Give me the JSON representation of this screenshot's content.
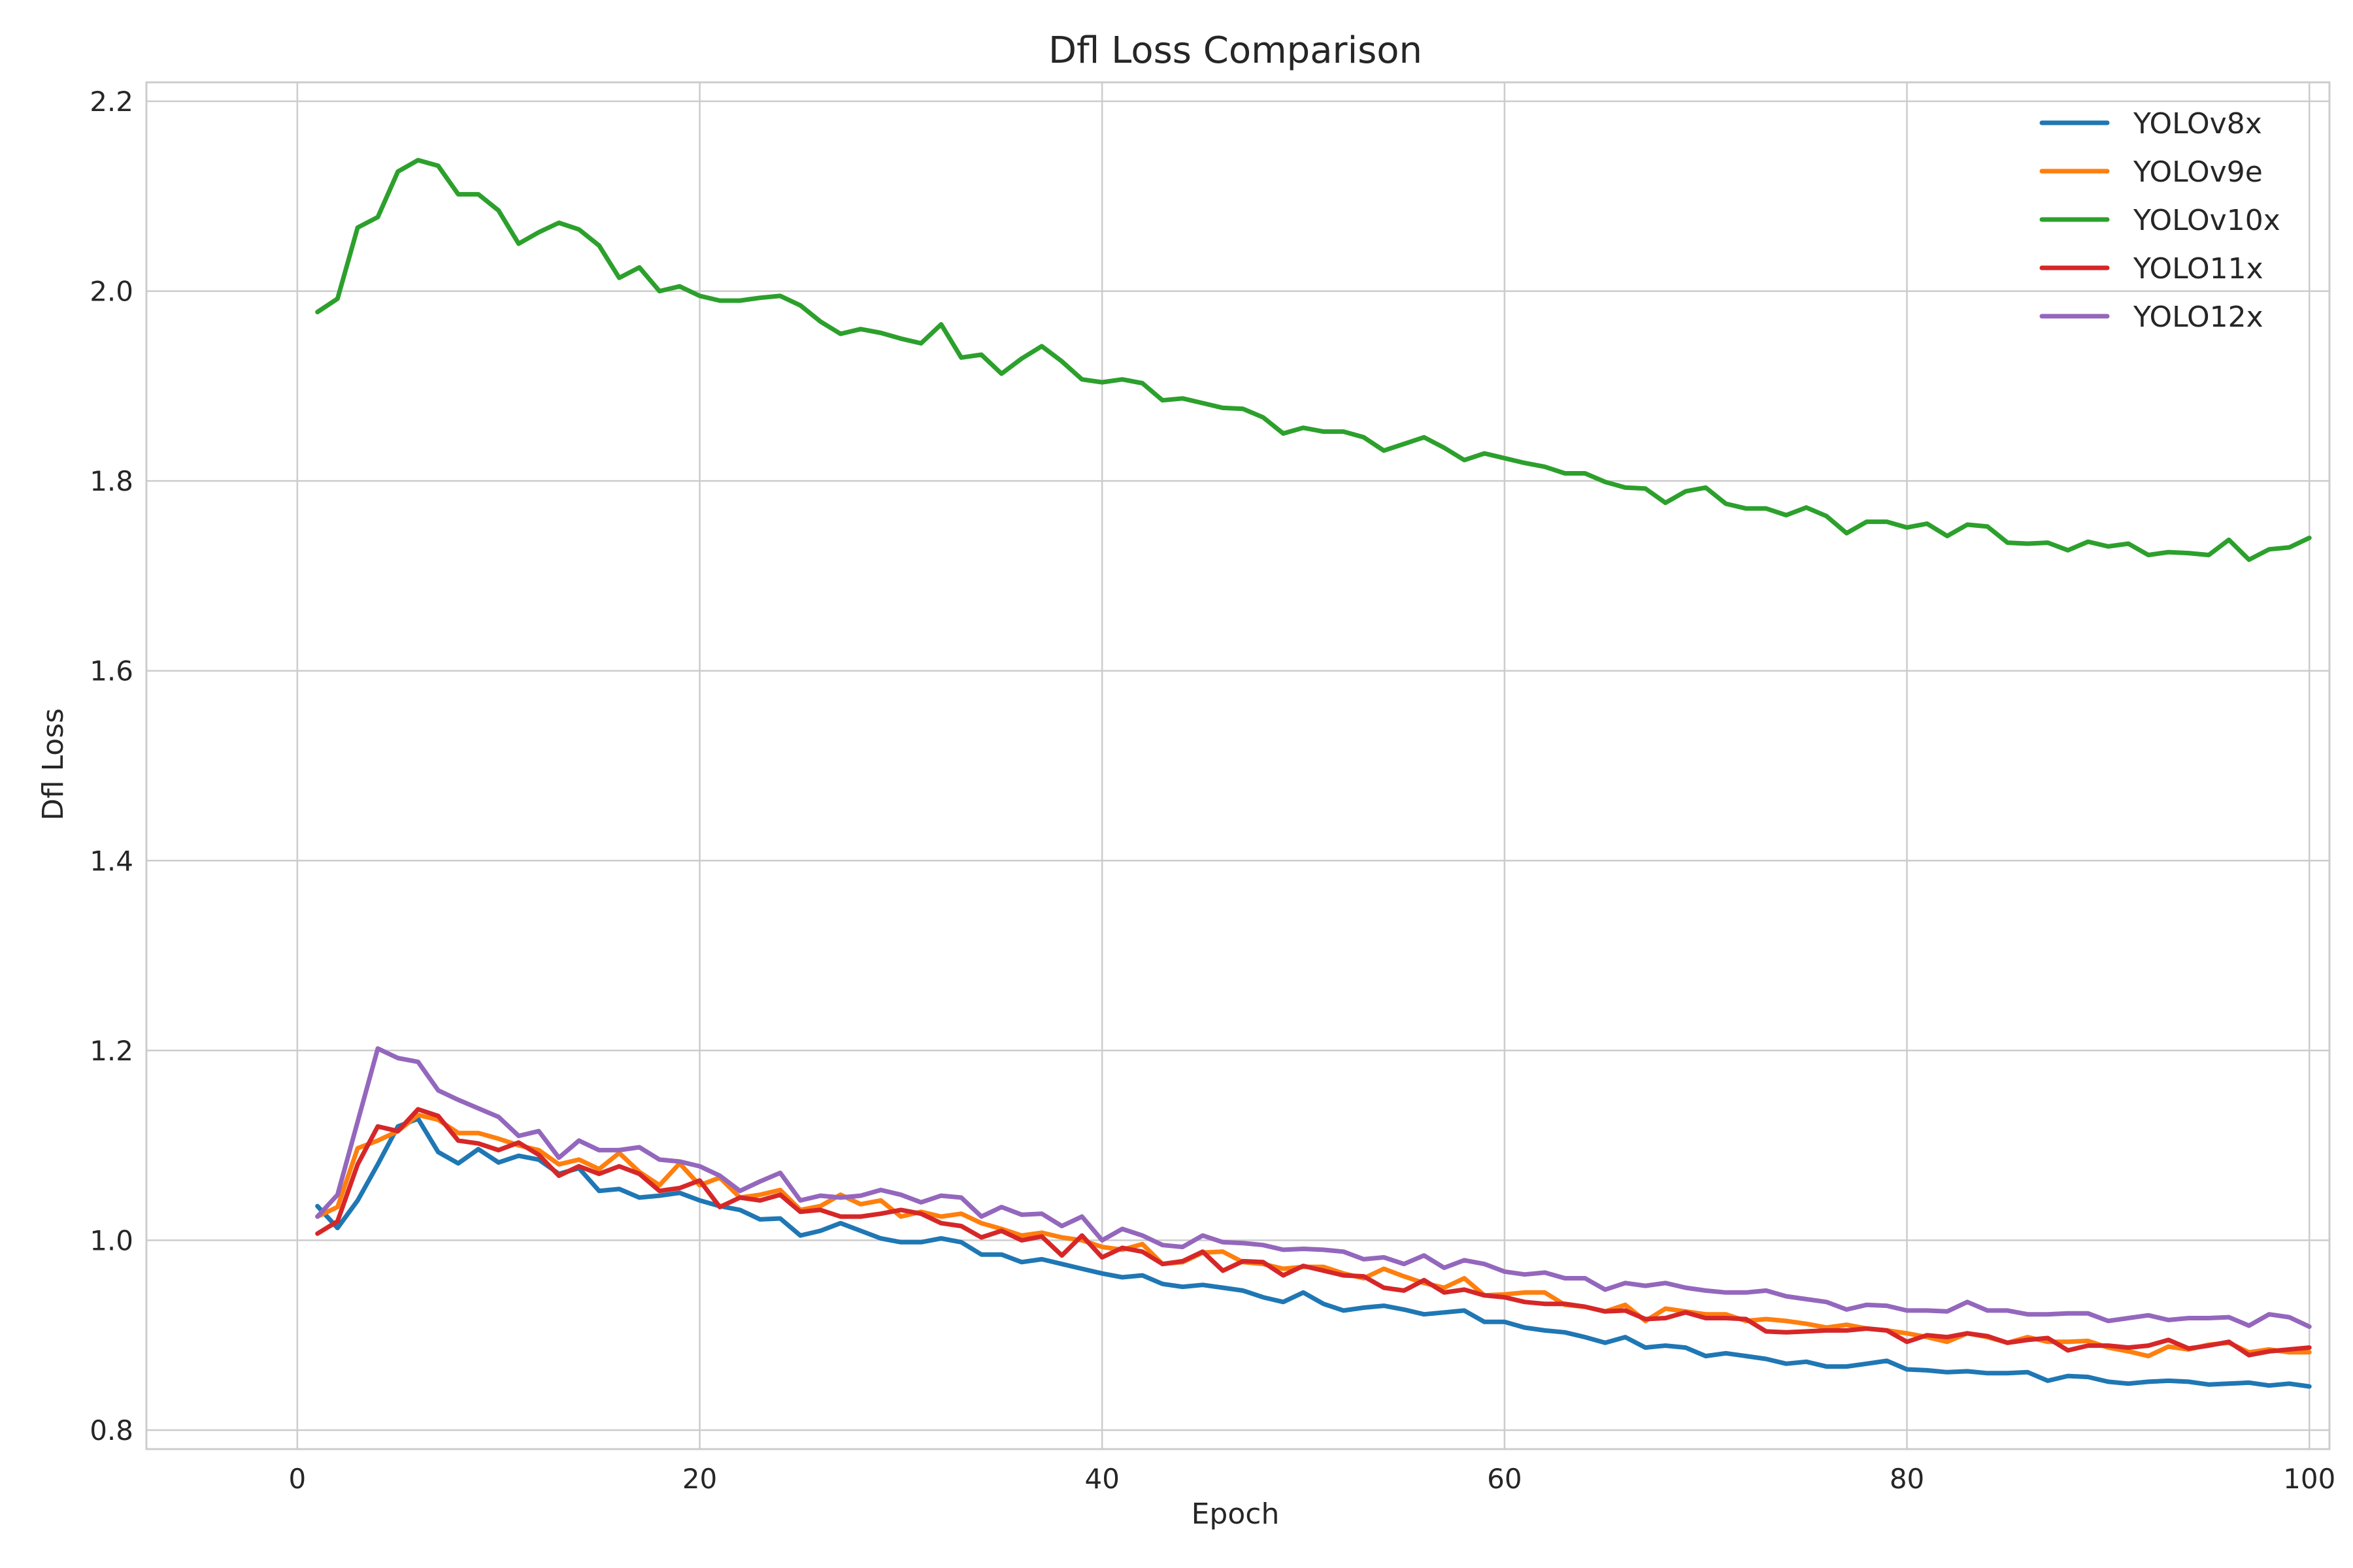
{
  "chart_data": {
    "type": "line",
    "title": "Dfl Loss Comparison",
    "xlabel": "Epoch",
    "ylabel": "Dfl Loss",
    "xlim": [
      -7.5,
      101
    ],
    "ylim": [
      0.78,
      2.22
    ],
    "xticks": [
      0,
      20,
      40,
      60,
      80,
      100
    ],
    "yticks": [
      0.8,
      1.0,
      1.2,
      1.4,
      1.6,
      1.8,
      2.0,
      2.2
    ],
    "xtick_labels": [
      "0",
      "20",
      "40",
      "60",
      "80",
      "100"
    ],
    "ytick_labels": [
      "0.8",
      "1.0",
      "1.2",
      "1.4",
      "1.6",
      "1.8",
      "2.0",
      "2.2"
    ],
    "grid": true,
    "legend_position": "top-right",
    "x_start": 1,
    "series": [
      {
        "name": "YOLOv8x",
        "color": "#1f77b4",
        "values": [
          1.036,
          1.013,
          1.042,
          1.08,
          1.12,
          1.128,
          1.093,
          1.081,
          1.096,
          1.082,
          1.089,
          1.085,
          1.07,
          1.076,
          1.052,
          1.054,
          1.045,
          1.047,
          1.05,
          1.042,
          1.036,
          1.032,
          1.022,
          1.023,
          1.005,
          1.01,
          1.018,
          1.01,
          1.002,
          0.998,
          0.998,
          1.002,
          0.998,
          0.985,
          0.985,
          0.977,
          0.98,
          0.975,
          0.97,
          0.965,
          0.961,
          0.963,
          0.954,
          0.951,
          0.953,
          0.95,
          0.947,
          0.94,
          0.935,
          0.945,
          0.933,
          0.926,
          0.929,
          0.931,
          0.927,
          0.922,
          0.924,
          0.926,
          0.914,
          0.914,
          0.908,
          0.905,
          0.903,
          0.898,
          0.892,
          0.898,
          0.887,
          0.889,
          0.887,
          0.878,
          0.881,
          0.878,
          0.875,
          0.87,
          0.872,
          0.867,
          0.867,
          0.87,
          0.873,
          0.864,
          0.863,
          0.861,
          0.862,
          0.86,
          0.86,
          0.861,
          0.852,
          0.857,
          0.856,
          0.851,
          0.849,
          0.851,
          0.852,
          0.851,
          0.848,
          0.849,
          0.85,
          0.847,
          0.849,
          0.846
        ]
      },
      {
        "name": "YOLOv9e",
        "color": "#ff7f0e",
        "values": [
          1.025,
          1.035,
          1.097,
          1.105,
          1.115,
          1.132,
          1.127,
          1.113,
          1.113,
          1.107,
          1.1,
          1.095,
          1.08,
          1.085,
          1.075,
          1.092,
          1.072,
          1.058,
          1.081,
          1.058,
          1.066,
          1.045,
          1.048,
          1.053,
          1.032,
          1.036,
          1.048,
          1.038,
          1.042,
          1.025,
          1.03,
          1.025,
          1.028,
          1.018,
          1.012,
          1.005,
          1.008,
          1.003,
          1.0,
          0.993,
          0.99,
          0.996,
          0.975,
          0.977,
          0.987,
          0.988,
          0.977,
          0.975,
          0.97,
          0.972,
          0.972,
          0.965,
          0.96,
          0.97,
          0.962,
          0.955,
          0.95,
          0.96,
          0.942,
          0.943,
          0.945,
          0.945,
          0.932,
          0.93,
          0.925,
          0.932,
          0.915,
          0.928,
          0.925,
          0.922,
          0.922,
          0.915,
          0.917,
          0.915,
          0.912,
          0.908,
          0.911,
          0.907,
          0.905,
          0.902,
          0.898,
          0.893,
          0.902,
          0.898,
          0.892,
          0.898,
          0.893,
          0.893,
          0.894,
          0.887,
          0.883,
          0.878,
          0.888,
          0.885,
          0.89,
          0.892,
          0.882,
          0.885,
          0.882,
          0.882
        ]
      },
      {
        "name": "YOLOv10x",
        "color": "#2ca02c",
        "values": [
          1.978,
          1.992,
          2.067,
          2.078,
          2.126,
          2.138,
          2.132,
          2.102,
          2.102,
          2.085,
          2.05,
          2.062,
          2.072,
          2.065,
          2.048,
          2.014,
          2.025,
          2.0,
          2.005,
          1.995,
          1.99,
          1.99,
          1.993,
          1.995,
          1.985,
          1.968,
          1.955,
          1.96,
          1.956,
          1.95,
          1.945,
          1.965,
          1.93,
          1.933,
          1.913,
          1.929,
          1.942,
          1.926,
          1.907,
          1.904,
          1.907,
          1.903,
          1.885,
          1.887,
          1.882,
          1.877,
          1.876,
          1.867,
          1.85,
          1.856,
          1.852,
          1.852,
          1.846,
          1.832,
          1.839,
          1.846,
          1.835,
          1.822,
          1.829,
          1.824,
          1.819,
          1.815,
          1.808,
          1.808,
          1.799,
          1.793,
          1.792,
          1.777,
          1.789,
          1.793,
          1.776,
          1.771,
          1.771,
          1.764,
          1.772,
          1.763,
          1.745,
          1.757,
          1.757,
          1.751,
          1.755,
          1.742,
          1.754,
          1.752,
          1.735,
          1.734,
          1.735,
          1.727,
          1.736,
          1.731,
          1.734,
          1.722,
          1.725,
          1.724,
          1.722,
          1.738,
          1.717,
          1.728,
          1.73,
          1.74
        ]
      },
      {
        "name": "YOLO11x",
        "color": "#d62728",
        "values": [
          1.007,
          1.02,
          1.08,
          1.12,
          1.115,
          1.138,
          1.131,
          1.105,
          1.102,
          1.095,
          1.103,
          1.09,
          1.068,
          1.078,
          1.07,
          1.078,
          1.07,
          1.052,
          1.055,
          1.063,
          1.035,
          1.045,
          1.042,
          1.048,
          1.03,
          1.032,
          1.025,
          1.025,
          1.028,
          1.032,
          1.028,
          1.018,
          1.015,
          1.003,
          1.01,
          1.0,
          1.004,
          0.984,
          1.005,
          0.982,
          0.992,
          0.988,
          0.975,
          0.978,
          0.988,
          0.968,
          0.978,
          0.977,
          0.963,
          0.973,
          0.968,
          0.963,
          0.962,
          0.95,
          0.947,
          0.958,
          0.945,
          0.948,
          0.942,
          0.94,
          0.935,
          0.933,
          0.933,
          0.93,
          0.925,
          0.926,
          0.917,
          0.918,
          0.924,
          0.918,
          0.918,
          0.917,
          0.904,
          0.903,
          0.904,
          0.905,
          0.905,
          0.907,
          0.905,
          0.893,
          0.9,
          0.898,
          0.902,
          0.899,
          0.892,
          0.895,
          0.897,
          0.884,
          0.889,
          0.889,
          0.887,
          0.889,
          0.895,
          0.886,
          0.889,
          0.893,
          0.879,
          0.883,
          0.885,
          0.887
        ]
      },
      {
        "name": "YOLO12x",
        "color": "#9467bd",
        "values": [
          1.025,
          1.048,
          1.125,
          1.202,
          1.192,
          1.188,
          1.158,
          1.148,
          1.139,
          1.13,
          1.11,
          1.115,
          1.087,
          1.105,
          1.095,
          1.095,
          1.098,
          1.085,
          1.083,
          1.078,
          1.068,
          1.052,
          1.062,
          1.071,
          1.042,
          1.047,
          1.045,
          1.047,
          1.053,
          1.048,
          1.04,
          1.047,
          1.045,
          1.025,
          1.035,
          1.027,
          1.028,
          1.015,
          1.025,
          1.0,
          1.012,
          1.005,
          0.995,
          0.993,
          1.005,
          0.998,
          0.997,
          0.995,
          0.99,
          0.991,
          0.99,
          0.988,
          0.98,
          0.982,
          0.975,
          0.984,
          0.971,
          0.979,
          0.975,
          0.967,
          0.964,
          0.966,
          0.96,
          0.96,
          0.948,
          0.955,
          0.952,
          0.955,
          0.95,
          0.947,
          0.945,
          0.945,
          0.947,
          0.941,
          0.938,
          0.935,
          0.927,
          0.932,
          0.931,
          0.926,
          0.926,
          0.925,
          0.935,
          0.926,
          0.926,
          0.922,
          0.922,
          0.923,
          0.923,
          0.915,
          0.918,
          0.921,
          0.916,
          0.918,
          0.918,
          0.919,
          0.91,
          0.922,
          0.919,
          0.909
        ]
      }
    ]
  }
}
